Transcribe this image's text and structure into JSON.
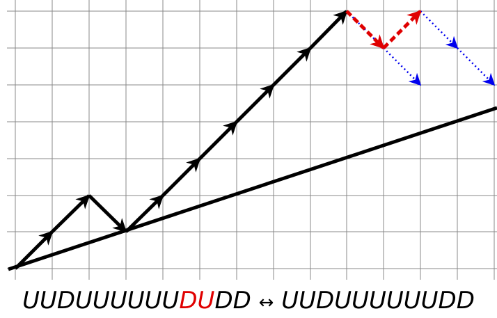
{
  "caption": {
    "prefix": "UUDUUUUUU",
    "highlight": "DU",
    "suffix": "DD",
    "arrow": "↔",
    "right": "UUDUUUUUUDD"
  }
}
